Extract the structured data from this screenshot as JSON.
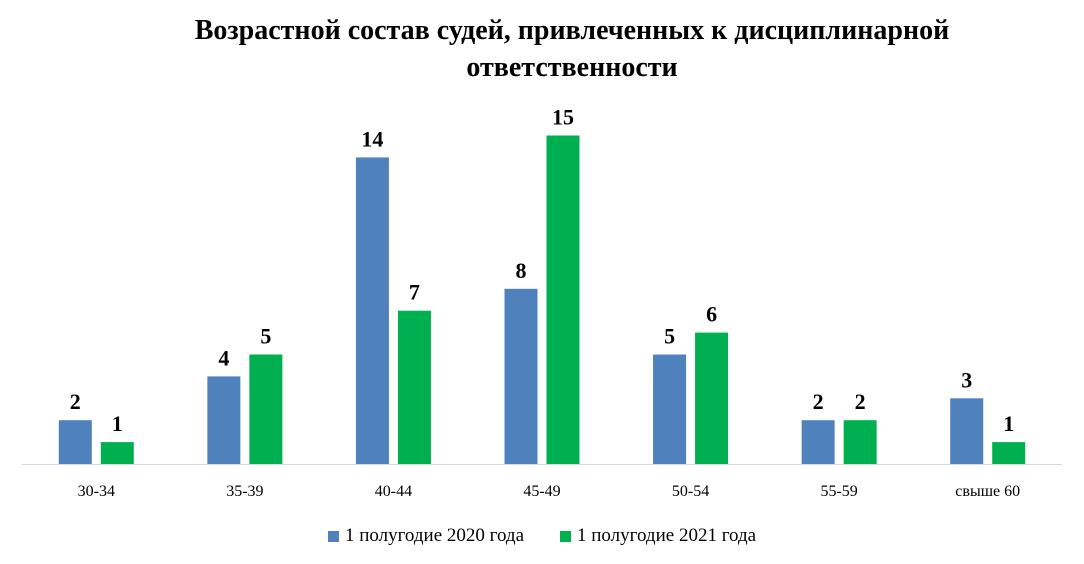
{
  "chart_data": {
    "type": "bar",
    "title": "Возрастной состав судей, привлеченных к дисциплинарной ответственности",
    "categories": [
      "30-34",
      "35-39",
      "40-44",
      "45-49",
      "50-54",
      "55-59",
      "свыше 60"
    ],
    "series": [
      {
        "name": "1 полугодие 2020 года",
        "values": [
          2,
          4,
          14,
          8,
          5,
          2,
          3
        ],
        "color": "#4F81BD"
      },
      {
        "name": "1 полугодие 2021 года",
        "values": [
          1,
          5,
          7,
          15,
          6,
          2,
          1
        ],
        "color": "#00B050"
      }
    ],
    "ylim": [
      0,
      15
    ],
    "grid": false,
    "data_labels": true,
    "legend_position": "bottom",
    "axis_color": "#D9D9D9"
  }
}
